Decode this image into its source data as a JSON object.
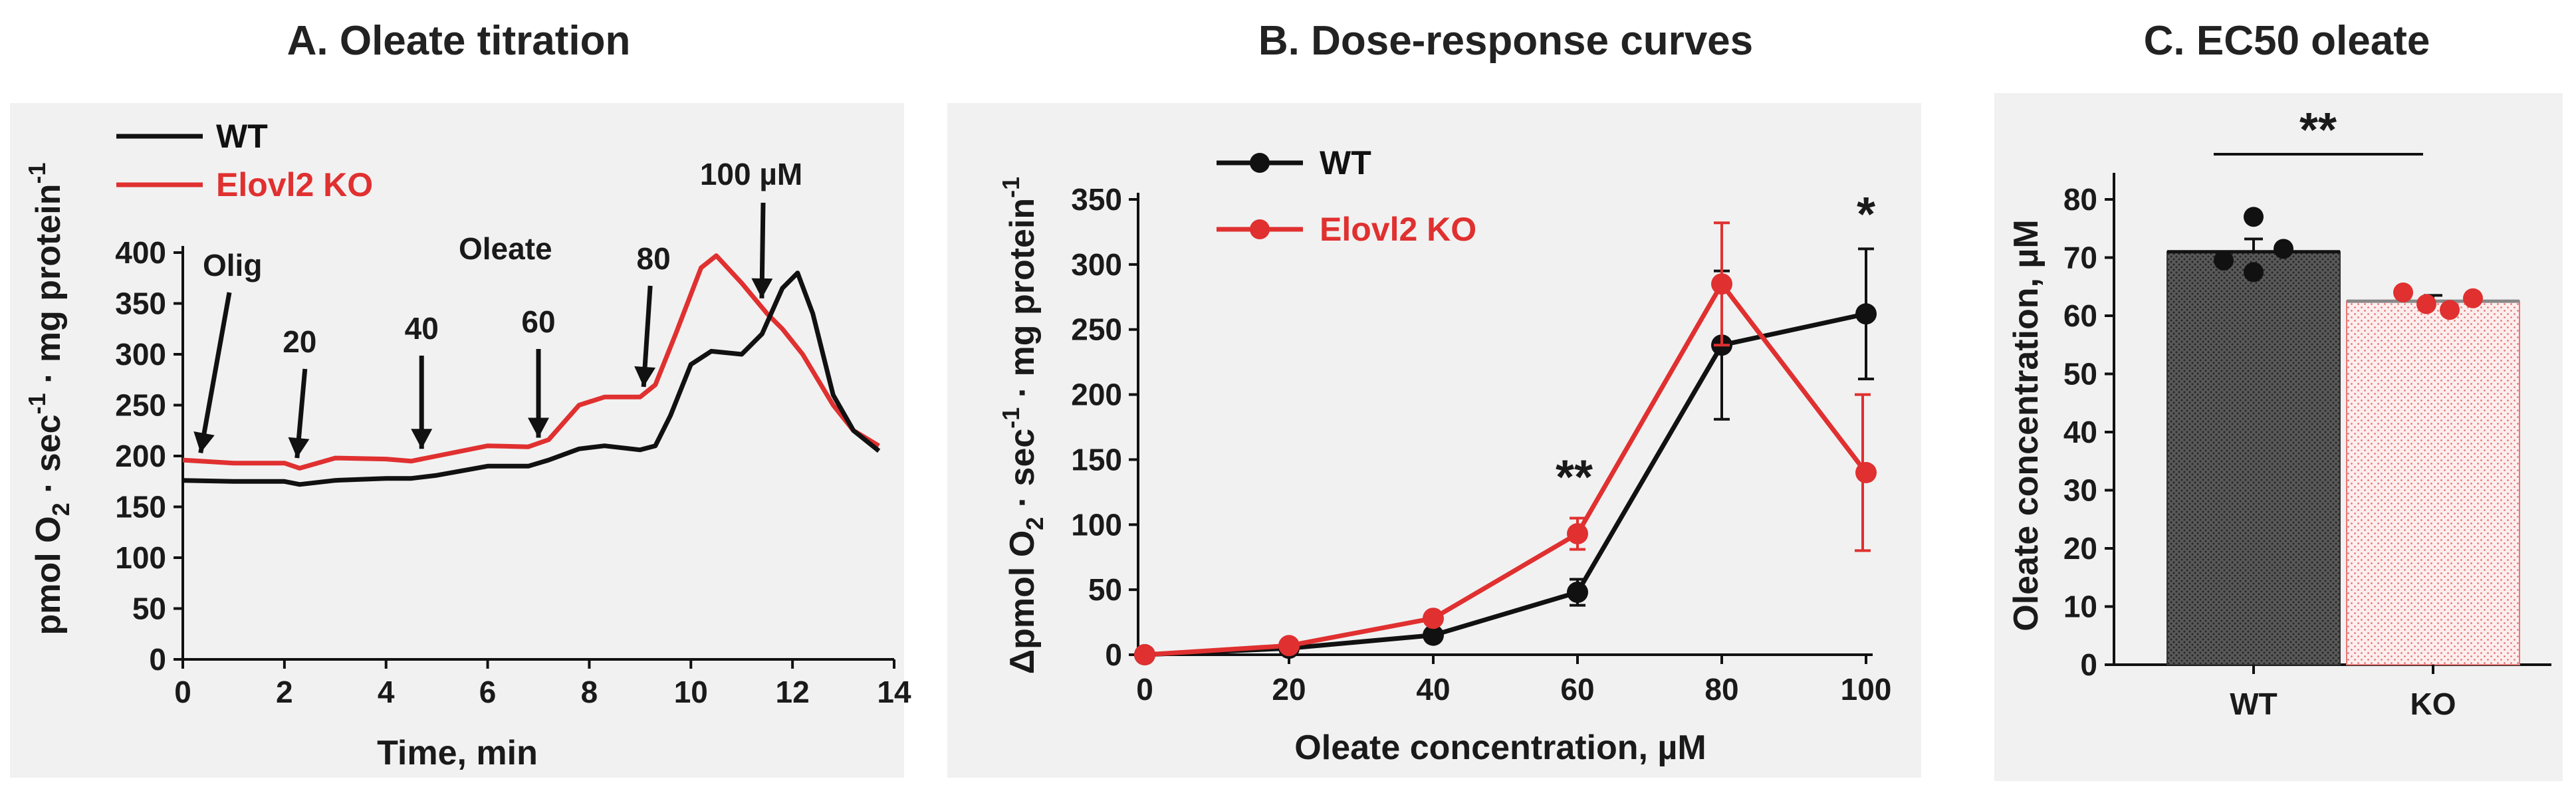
{
  "chart_data": [
    {
      "id": "A",
      "type": "line",
      "title": "A. Oleate titration",
      "xlabel": "Time, min",
      "ylabel": "pmol O2 · sec-1 · mg protein-1",
      "ylabel_parts": {
        "pre": "pmol O",
        "sub": "2",
        "mid": " · sec",
        "sup1": "-1",
        "post": " · mg protein",
        "sup2": "-1"
      },
      "xlim": [
        0,
        14
      ],
      "ylim": [
        0,
        400
      ],
      "xticks": [
        0,
        2,
        4,
        6,
        8,
        10,
        12,
        14
      ],
      "yticks": [
        0,
        50,
        100,
        150,
        200,
        250,
        300,
        350,
        400
      ],
      "legend": [
        "WT",
        "Elovl2 KO"
      ],
      "series": [
        {
          "name": "WT",
          "color": "#111111",
          "x": [
            0,
            1,
            2,
            2.3,
            3,
            4,
            4.5,
            5,
            6,
            6.8,
            7.2,
            7.8,
            8.3,
            9.0,
            9.3,
            9.6,
            10.0,
            10.4,
            11.0,
            11.4,
            11.8,
            12.1,
            12.4,
            12.8,
            13.2,
            13.7
          ],
          "y": [
            176,
            175,
            175,
            172,
            176,
            178,
            178,
            181,
            190,
            190,
            196,
            207,
            210,
            206,
            210,
            240,
            290,
            303,
            300,
            320,
            365,
            380,
            340,
            260,
            225,
            205
          ]
        },
        {
          "name": "Elovl2 KO",
          "color": "#e03030",
          "x": [
            0,
            1,
            2,
            2.3,
            3,
            4,
            4.5,
            5,
            6,
            6.8,
            7.2,
            7.8,
            8.3,
            9.0,
            9.3,
            9.7,
            10.2,
            10.5,
            11.0,
            11.5,
            11.8,
            12.2,
            12.8,
            13.2,
            13.7
          ],
          "y": [
            196,
            193,
            193,
            188,
            198,
            197,
            195,
            200,
            210,
            209,
            216,
            250,
            258,
            258,
            270,
            320,
            385,
            397,
            370,
            340,
            325,
            300,
            250,
            225,
            210
          ]
        }
      ],
      "annotations": [
        {
          "label": "Olig",
          "x": 0.35
        },
        {
          "label": "20",
          "x": 2.3
        },
        {
          "label": "40",
          "x": 4.7
        },
        {
          "label": "60",
          "x": 7.0
        },
        {
          "label": "Oleate",
          "x": 7.0
        },
        {
          "label": "80",
          "x": 9.2
        },
        {
          "label": "100 µM",
          "x": 11.5
        }
      ]
    },
    {
      "id": "B",
      "type": "line",
      "title": "B. Dose-response curves",
      "xlabel": "Oleate concentration, µM",
      "ylabel": "Δpmol O2 · sec-1 · mg protein-1",
      "ylabel_parts": {
        "pre": "Δpmol O",
        "sub": "2",
        "mid": " · sec",
        "sup1": "-1",
        "post": " · mg protein",
        "sup2": "-1"
      },
      "xlim": [
        0,
        100
      ],
      "ylim": [
        0,
        350
      ],
      "xticks": [
        0,
        20,
        40,
        60,
        80,
        100
      ],
      "yticks": [
        0,
        50,
        100,
        150,
        200,
        250,
        300,
        350
      ],
      "legend": [
        "WT",
        "Elovl2 KO"
      ],
      "categories": [
        0,
        20,
        40,
        60,
        80,
        100
      ],
      "series": [
        {
          "name": "WT",
          "color": "#111111",
          "values": [
            0,
            5,
            15,
            48,
            238,
            262
          ],
          "errors": [
            0,
            2,
            3,
            10,
            57,
            50
          ]
        },
        {
          "name": "Elovl2 KO",
          "color": "#e03030",
          "values": [
            0,
            7,
            28,
            93,
            285,
            140
          ],
          "errors": [
            0,
            2,
            3,
            12,
            47,
            60
          ]
        }
      ],
      "significance": [
        {
          "x": 60,
          "label": "**"
        },
        {
          "x": 100,
          "label": "*"
        }
      ]
    },
    {
      "id": "C",
      "type": "bar",
      "title": "C. EC50 oleate",
      "xlabel": "",
      "ylabel": "Oleate concentration, µM",
      "ylim": [
        0,
        80
      ],
      "yticks": [
        0,
        10,
        20,
        30,
        40,
        50,
        60,
        70,
        80
      ],
      "categories": [
        "WT",
        "KO"
      ],
      "values": [
        71,
        62.5
      ],
      "errors": [
        2.2,
        1.0
      ],
      "colors": [
        "#444444",
        "#e03030"
      ],
      "points": [
        [
          69.5,
          77,
          67.5,
          71.5
        ],
        [
          64,
          62,
          61,
          63
        ]
      ],
      "significance": "**"
    }
  ]
}
